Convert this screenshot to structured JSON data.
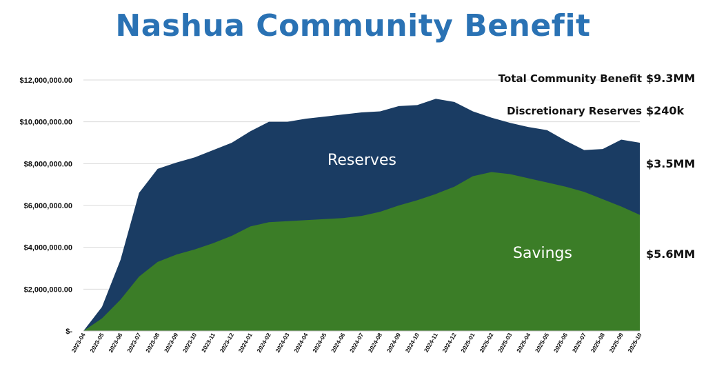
{
  "chart_data": {
    "type": "area",
    "title": "Nashua Community Benefit",
    "xlabel": "",
    "ylabel": "",
    "ylim": [
      0,
      12000000
    ],
    "y_ticks": [
      {
        "value": 0,
        "label": "$-"
      },
      {
        "value": 2000000,
        "label": "$2,000,000.00"
      },
      {
        "value": 4000000,
        "label": "$4,000,000.00"
      },
      {
        "value": 6000000,
        "label": "$6,000,000.00"
      },
      {
        "value": 8000000,
        "label": "$8,000,000.00"
      },
      {
        "value": 10000000,
        "label": "$10,000,000.00"
      },
      {
        "value": 12000000,
        "label": "$12,000,000.00"
      }
    ],
    "grid": true,
    "stacked": true,
    "categories": [
      "2023-04",
      "2023-05",
      "2023-06",
      "2023-07",
      "2023-08",
      "2023-09",
      "2023-10",
      "2023-11",
      "2023-12",
      "2024-01",
      "2024-02",
      "2024-03",
      "2024-04",
      "2024-05",
      "2024-06",
      "2024-07",
      "2024-08",
      "2024-09",
      "2024-10",
      "2024-11",
      "2024-12",
      "2025-01",
      "2025-02",
      "2025-03",
      "2025-04",
      "2025-05",
      "2025-06",
      "2025-07",
      "2025-08",
      "2025-09",
      "2025-10"
    ],
    "series": [
      {
        "name": "Savings",
        "color": "#3b7d27",
        "values": [
          0,
          600000,
          1500000,
          2600000,
          3300000,
          3650000,
          3900000,
          4200000,
          4550000,
          5000000,
          5200000,
          5250000,
          5300000,
          5350000,
          5400000,
          5500000,
          5700000,
          6000000,
          6250000,
          6550000,
          6900000,
          7400000,
          7600000,
          7500000,
          7300000,
          7100000,
          6900000,
          6650000,
          6300000,
          5950000,
          5550000
        ]
      },
      {
        "name": "Reserves",
        "color": "#1a3c63",
        "values": [
          0,
          550000,
          1900000,
          4000000,
          4450000,
          4400000,
          4400000,
          4450000,
          4450000,
          4550000,
          4800000,
          4750000,
          4850000,
          4900000,
          4950000,
          4950000,
          4800000,
          4750000,
          4550000,
          4550000,
          4050000,
          3100000,
          2600000,
          2450000,
          2450000,
          2500000,
          2200000,
          2000000,
          2400000,
          3200000,
          3450000
        ]
      }
    ],
    "annotations": [
      {
        "label": "Total Community Benefit",
        "value": "$9.3MM"
      },
      {
        "label": "Discretionary Reserves",
        "value": "$240k"
      },
      {
        "label": "",
        "value": "$3.5MM"
      },
      {
        "label": "",
        "value": "$5.6MM"
      }
    ]
  }
}
